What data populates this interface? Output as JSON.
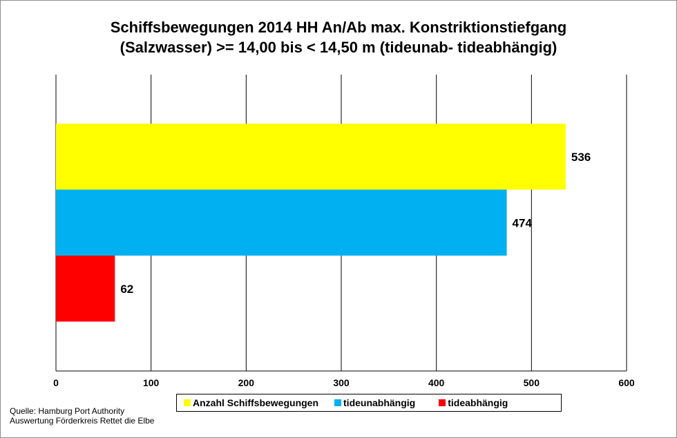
{
  "chart_data": {
    "type": "bar",
    "orientation": "horizontal",
    "title_line1": "Schiffsbewegungen 2014 HH An/Ab max. Konstriktionstiefgang",
    "title_line2": "(Salzwasser) >= 14,00 bis < 14,50 m (tideunab- tideabhängig)",
    "series": [
      {
        "name": "Anzahl Schiffsbewegungen",
        "value": 536,
        "color": "#ffff00"
      },
      {
        "name": "tideunabhängig",
        "value": 474,
        "color": "#00b0f0"
      },
      {
        "name": "tideabhängig",
        "value": 62,
        "color": "#ff0000"
      }
    ],
    "xlim": [
      0,
      600
    ],
    "xticks": [
      0,
      100,
      200,
      300,
      400,
      500,
      600
    ],
    "grid": true,
    "legend_position": "bottom"
  },
  "source": {
    "line1": "Quelle: Hamburg Port Authority",
    "line2": "Auswertung Förderkreis Rettet  die Elbe"
  }
}
